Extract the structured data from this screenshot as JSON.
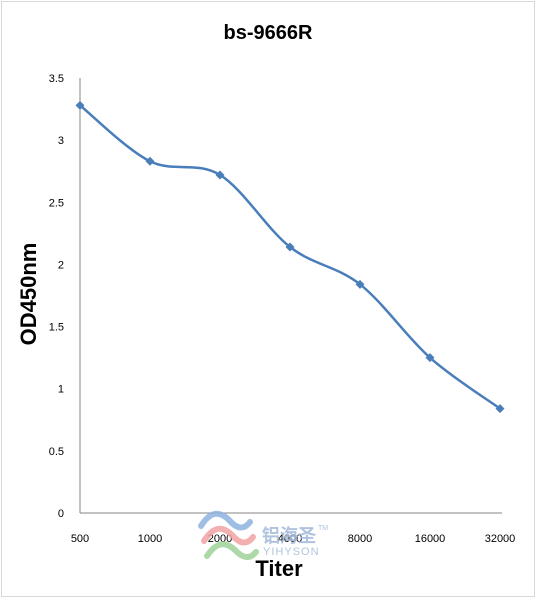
{
  "chart_data": {
    "type": "line",
    "title": "bs-9666R",
    "xlabel": "Titer",
    "ylabel": "OD450nm",
    "categories": [
      "500",
      "1000",
      "2000",
      "4000",
      "8000",
      "16000",
      "32000"
    ],
    "series": [
      {
        "values": [
          3.28,
          2.83,
          2.72,
          2.14,
          1.84,
          1.25,
          0.84
        ]
      }
    ],
    "ylim": [
      0,
      3.5
    ],
    "yticks": [
      "0",
      "0.5",
      "1",
      "1.5",
      "2",
      "2.5",
      "3",
      "3.5"
    ],
    "grid": false,
    "legend": "none",
    "line_color": "#4a7ebb",
    "smooth": true
  },
  "watermark": {
    "cn": "铝海圣",
    "en": "YIHYSON",
    "tm": "TM"
  }
}
